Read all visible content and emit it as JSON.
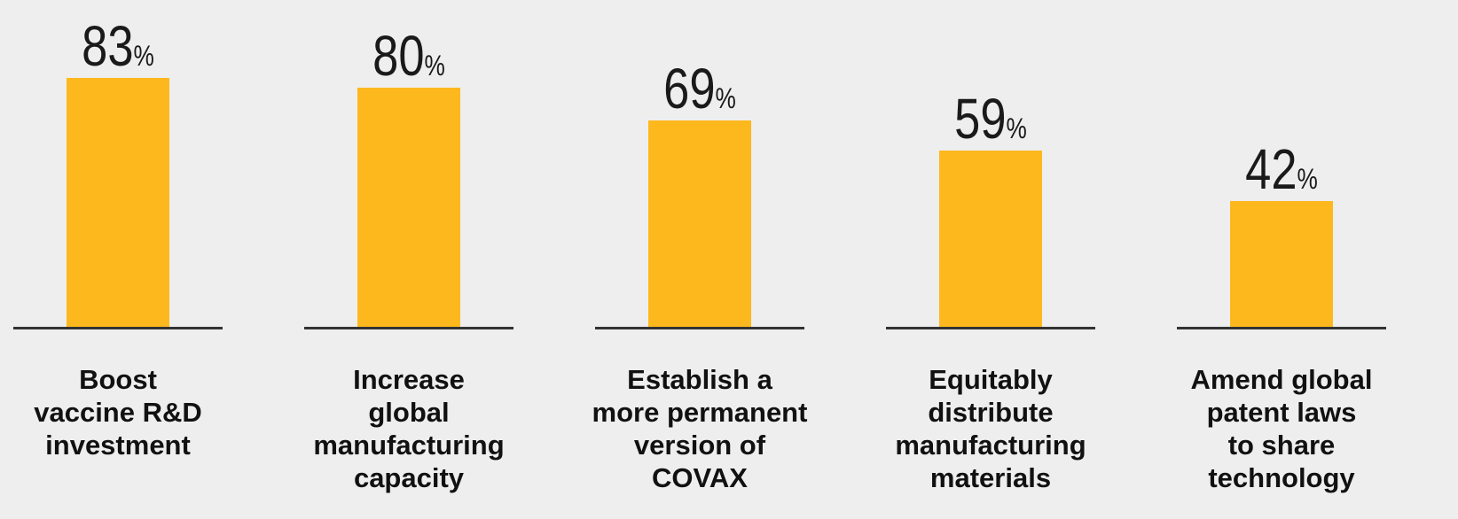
{
  "chart_data": {
    "type": "bar",
    "title": "",
    "xlabel": "",
    "ylabel": "",
    "categories": [
      "Boost vaccine R&D investment",
      "Increase global manufacturing capacity",
      "Establish a more permanent version of COVAX",
      "Equitably distribute manufacturing materials",
      "Amend global patent laws to share technology"
    ],
    "values": [
      83,
      80,
      69,
      59,
      42
    ],
    "value_suffix": "%",
    "ylim": [
      0,
      100
    ],
    "grid": false,
    "bar_color": "#fdb81e",
    "baseline_color": "#333333"
  }
}
